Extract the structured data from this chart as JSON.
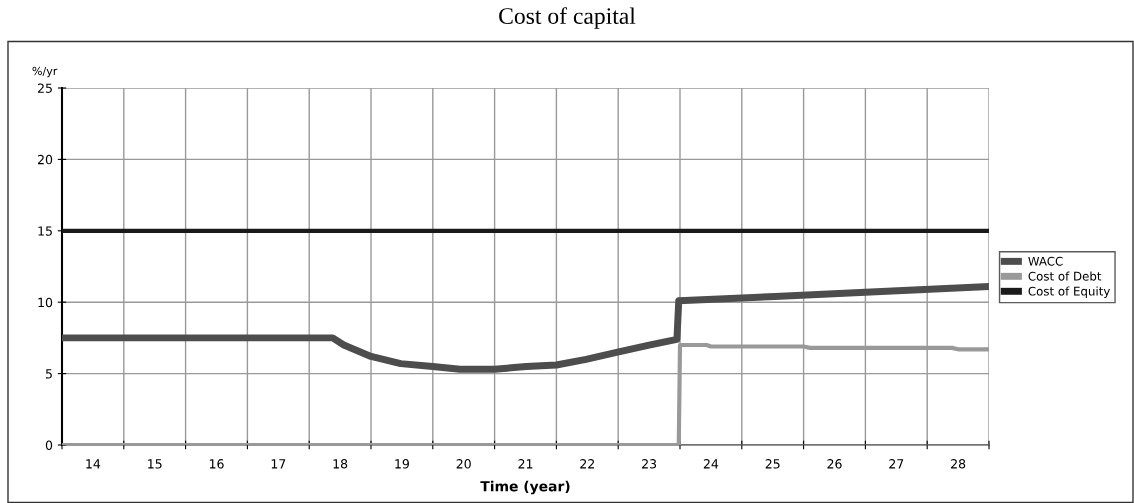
{
  "chart_data": {
    "type": "line",
    "title": "Cost of capital",
    "xlabel": "Time (year)",
    "ylabel": "%/yr",
    "xlim": [
      13.5,
      28.5
    ],
    "xticks": [
      {
        "value": 13.5,
        "label": null
      },
      {
        "value": 14.5,
        "label": null
      },
      {
        "value": 15.5,
        "label": null
      },
      {
        "value": 16.5,
        "label": null
      },
      {
        "value": 17.5,
        "label": null
      },
      {
        "value": 18.5,
        "label": null
      },
      {
        "value": 19.5,
        "label": null
      },
      {
        "value": 20.5,
        "label": null
      },
      {
        "value": 21.5,
        "label": null
      },
      {
        "value": 22.5,
        "label": null
      },
      {
        "value": 23.5,
        "label": null
      },
      {
        "value": 24.5,
        "label": null
      },
      {
        "value": 25.5,
        "label": null
      },
      {
        "value": 26.5,
        "label": null
      },
      {
        "value": 27.5,
        "label": null
      },
      {
        "value": 28.5,
        "label": null
      },
      14,
      15,
      16,
      17,
      18,
      19,
      20,
      21,
      22,
      23,
      24,
      25,
      26,
      27,
      28
    ],
    "ylim": [
      0,
      25
    ],
    "yticks": [
      0,
      5,
      10,
      15,
      20,
      25
    ],
    "grid": true,
    "legend": "right",
    "series": [
      {
        "name": "WACC",
        "color": "#4d4d4d",
        "x": [
          13.5,
          17.88,
          18.06,
          18.5,
          18.98,
          19.5,
          19.94,
          20.5,
          21.01,
          21.5,
          21.98,
          22.49,
          23.0,
          23.45,
          23.48,
          24.5,
          25.04,
          26.5,
          28.5
        ],
        "values": [
          7.5,
          7.5,
          7.0,
          6.2,
          5.7,
          5.5,
          5.3,
          5.3,
          5.5,
          5.6,
          6.0,
          6.5,
          7.0,
          7.4,
          10.1,
          10.3,
          10.4,
          10.7,
          11.1
        ]
      },
      {
        "name": "Cost of Debt",
        "color": "#999999",
        "x": [
          13.5,
          23.48,
          23.5,
          23.93,
          24.0,
          25.5,
          25.6,
          27.9,
          28.0,
          28.5
        ],
        "values": [
          0,
          0,
          7.0,
          7.0,
          6.9,
          6.9,
          6.8,
          6.8,
          6.7,
          6.7
        ]
      },
      {
        "name": "Cost of Equity",
        "color": "#1a1a1a",
        "x": [
          13.5,
          28.5
        ],
        "values": [
          15,
          15
        ]
      }
    ]
  }
}
